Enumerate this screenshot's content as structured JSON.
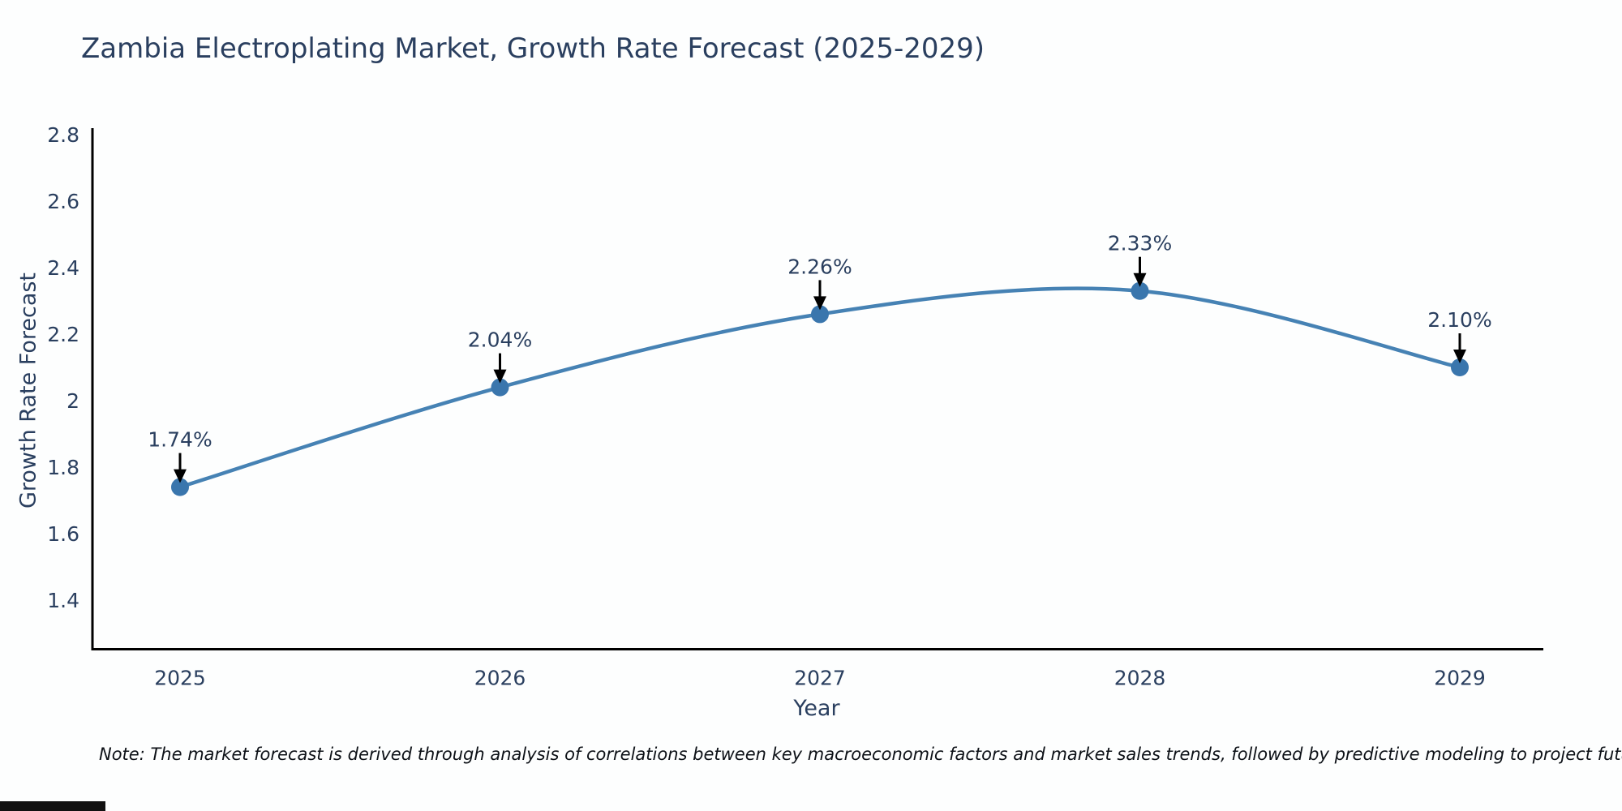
{
  "note": "Note: The market forecast is derived through analysis of correlations between key macroeconomic factors and market sales trends, followed by predictive modeling to project future sales",
  "chart_data": {
    "type": "line",
    "title": "Zambia Electroplating Market, Growth Rate Forecast (2025-2029)",
    "xlabel": "Year",
    "ylabel": "Growth Rate Forecast",
    "x": [
      2025,
      2026,
      2027,
      2028,
      2029
    ],
    "xtick_labels": [
      "2025",
      "2026",
      "2027",
      "2028",
      "2029"
    ],
    "values": [
      1.74,
      2.04,
      2.26,
      2.33,
      2.1
    ],
    "point_labels": [
      "1.74%",
      "2.04%",
      "2.26%",
      "2.33%",
      "2.10%"
    ],
    "yticks": [
      1.4,
      1.6,
      1.8,
      2,
      2.2,
      2.4,
      2.6,
      2.8
    ],
    "ytick_labels": [
      "1.4",
      "1.6",
      "1.8",
      "2",
      "2.2",
      "2.4",
      "2.6",
      "2.8"
    ],
    "ylim": [
      1.25,
      2.82
    ],
    "grid": false,
    "legend": "none",
    "line_shape": "spline",
    "annotation_style": "label-above-with-down-arrow",
    "colors": {
      "line": "#4682b4",
      "marker": "#3a76ad",
      "axis_line": "#000000",
      "text": "#2a3f5f",
      "annotation_arrow": "#000000",
      "note_text": "#0d1117",
      "background": "#fdfefe"
    }
  }
}
